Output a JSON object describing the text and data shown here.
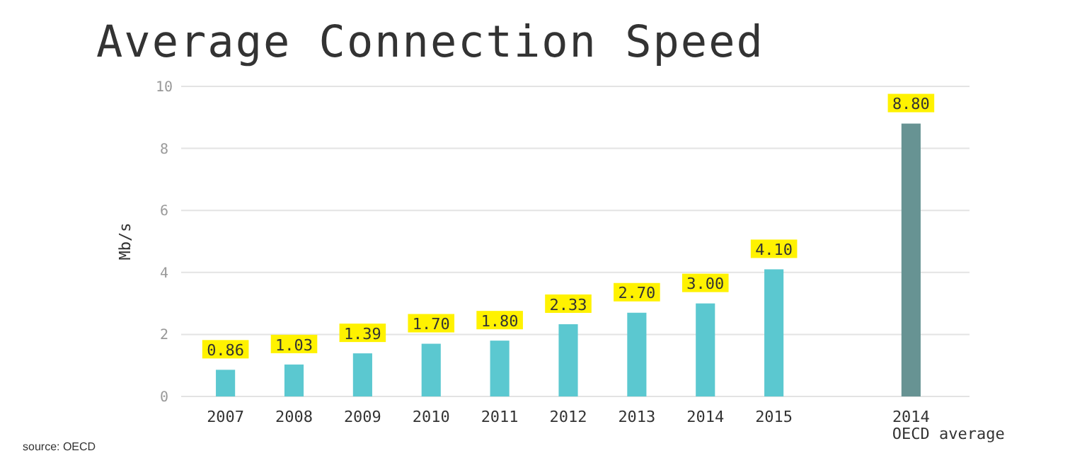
{
  "chart_data": {
    "type": "bar",
    "title": "Average Connection Speed",
    "ylabel": "Mb/s",
    "annotations": [
      "source:  OECD"
    ],
    "categories": [
      "2007",
      "2008",
      "2009",
      "2010",
      "2011",
      "2012",
      "2013",
      "2014",
      "2015",
      null,
      "2014\nOECD average"
    ],
    "values": [
      0.86,
      1.03,
      1.39,
      1.7,
      1.8,
      2.33,
      2.7,
      3.0,
      4.1,
      null,
      8.8
    ],
    "colors": [
      "#5bc8d0",
      "#5bc8d0",
      "#5bc8d0",
      "#5bc8d0",
      "#5bc8d0",
      "#5bc8d0",
      "#5bc8d0",
      "#5bc8d0",
      "#5bc8d0",
      null,
      "#679393"
    ],
    "value_labels": [
      "0.86",
      "1.03",
      "1.39",
      "1.70",
      "1.80",
      "2.33",
      "2.70",
      "3.00",
      "4.10",
      null,
      "8.80"
    ],
    "ylim": [
      0,
      10
    ],
    "yticks": [
      0,
      2,
      4,
      6,
      8,
      10
    ],
    "grid": "y"
  }
}
